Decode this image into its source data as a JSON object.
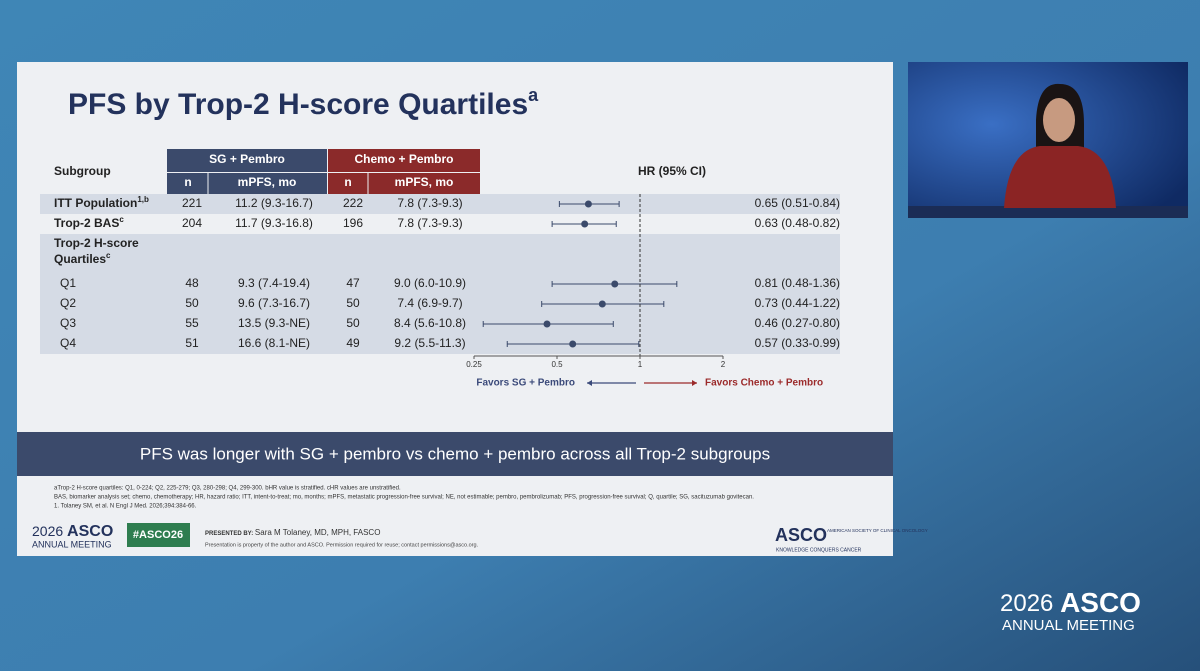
{
  "slide": {
    "title": "PFS by Trop-2 H-score Quartiles",
    "title_sup": "a",
    "headers": {
      "subgroup": "Subgroup",
      "sg_group": "SG + Pembro",
      "chemo_group": "Chemo + Pembro",
      "n": "n",
      "mpfs": "mPFS, mo",
      "hr": "HR (95% CI)"
    },
    "rows": [
      {
        "label": "ITT Population",
        "sup": "1,b",
        "n_sg": 221,
        "mpfs_sg": "11.2 (9.3-16.7)",
        "n_chemo": 222,
        "mpfs_chemo": "7.8 (7.3-9.3)",
        "hr_text": "0.65 (0.51-0.84)",
        "hr": 0.65,
        "ci_low": 0.51,
        "ci_high": 0.84
      },
      {
        "label": "Trop-2 BAS",
        "sup": "c",
        "n_sg": 204,
        "mpfs_sg": "11.7 (9.3-16.8)",
        "n_chemo": 196,
        "mpfs_chemo": "7.8 (7.3-9.3)",
        "hr_text": "0.63 (0.48-0.82)",
        "hr": 0.63,
        "ci_low": 0.48,
        "ci_high": 0.82
      },
      {
        "label_lines": [
          "Trop-2 H-score",
          "Quartiles"
        ],
        "sup": "c"
      },
      {
        "label": "Q1",
        "n_sg": 48,
        "mpfs_sg": "9.3 (7.4-19.4)",
        "n_chemo": 47,
        "mpfs_chemo": "9.0 (6.0-10.9)",
        "hr_text": "0.81 (0.48-1.36)",
        "hr": 0.81,
        "ci_low": 0.48,
        "ci_high": 1.36
      },
      {
        "label": "Q2",
        "n_sg": 50,
        "mpfs_sg": "9.6 (7.3-16.7)",
        "n_chemo": 50,
        "mpfs_chemo": "7.4 (6.9-9.7)",
        "hr_text": "0.73 (0.44-1.22)",
        "hr": 0.73,
        "ci_low": 0.44,
        "ci_high": 1.22
      },
      {
        "label": "Q3",
        "n_sg": 55,
        "mpfs_sg": "13.5 (9.3-NE)",
        "n_chemo": 50,
        "mpfs_chemo": "8.4 (5.6-10.8)",
        "hr_text": "0.46 (0.27-0.80)",
        "hr": 0.46,
        "ci_low": 0.27,
        "ci_high": 0.8
      },
      {
        "label": "Q4",
        "n_sg": 51,
        "mpfs_sg": "16.6 (8.1-NE)",
        "n_chemo": 49,
        "mpfs_chemo": "9.2 (5.5-11.3)",
        "hr_text": "0.57 (0.33-0.99)",
        "hr": 0.57,
        "ci_low": 0.33,
        "ci_high": 0.99
      }
    ],
    "forest": {
      "scale": "log",
      "xlim": [
        0.25,
        2
      ],
      "xticks": [
        0.25,
        0.5,
        1,
        2
      ],
      "reference_line": 1,
      "favors_left": "Favors SG + Pembro",
      "favors_right": "Favors Chemo + Pembro",
      "left_color": "#3b4a7a",
      "right_color": "#9b2a2a"
    },
    "banner": "PFS was longer with SG + pembro vs chemo + pembro across all Trop-2 subgroups",
    "footnotes": [
      "aTrop-2 H-score quartiles: Q1, 0-224; Q2, 225-279; Q3, 280-298; Q4, 299-300. bHR value is stratified. cHR values are unstratified.",
      "BAS, biomarker analysis set; chemo, chemotherapy; HR, hazard ratio; ITT, intent-to-treat; mo, months; mPFS, metastatic progression-free survival; NE, not estimable; pembro, pembrolizumab; PFS, progression-free survival; Q, quartile; SG, sacituzumab govitecan.",
      "1. Tolaney SM, et al. N Engl J Med. 2026;394:384-66."
    ],
    "footer": {
      "meeting_year": "2026",
      "meeting_brand": "ASCO",
      "meeting_sub": "ANNUAL MEETING",
      "hashtag": "#ASCO26",
      "presented_by": "PRESENTED BY:",
      "presenter": "Sara M Tolaney, MD, MPH, FASCO",
      "permission": "Presentation is property of the author and ASCO. Permission required for reuse; contact permissions@asco.org.",
      "logo": "ASCO",
      "logo_society": "AMERICAN SOCIETY OF CLINICAL ONCOLOGY",
      "logo_tagline": "KNOWLEDGE CONQUERS CANCER"
    }
  },
  "overlay": {
    "year": "2026",
    "brand": "ASCO",
    "sub": "ANNUAL MEETING"
  }
}
